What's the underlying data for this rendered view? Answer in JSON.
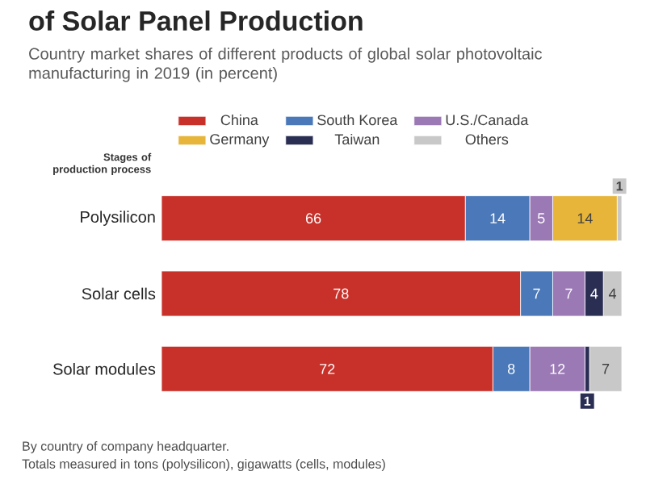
{
  "chart_data": {
    "type": "bar",
    "orientation": "horizontal",
    "stacked": true,
    "title": "of Solar Panel Production",
    "subtitle": "Country market shares of different products of global solar photovoltaic manufacturing in 2019 (in percent)",
    "ylabel": "Stages of production process",
    "categories": [
      "Polysilicon",
      "Solar cells",
      "Solar modules"
    ],
    "series": [
      {
        "name": "China",
        "color": "#c8312a",
        "values": [
          66,
          78,
          72
        ],
        "value_labels": [
          "66",
          "78",
          "72"
        ]
      },
      {
        "name": "South Korea",
        "color": "#4a78b8",
        "values": [
          14,
          7,
          8
        ],
        "value_labels": [
          "14",
          "7",
          "8"
        ]
      },
      {
        "name": "U.S./Canada",
        "color": "#9b79b5",
        "values": [
          5,
          7,
          12
        ],
        "value_labels": [
          "5",
          "7",
          "12"
        ]
      },
      {
        "name": "Germany",
        "color": "#e6b53a",
        "values": [
          14,
          0,
          0
        ],
        "value_labels": [
          "14",
          null,
          null
        ]
      },
      {
        "name": "Taiwan",
        "color": "#2a2e52",
        "values": [
          0,
          4,
          1
        ],
        "value_labels": [
          null,
          "4",
          "1"
        ]
      },
      {
        "name": "Others",
        "color": "#c8c8c8",
        "values": [
          1,
          4,
          7
        ],
        "value_labels": [
          "1",
          "4",
          "7"
        ]
      }
    ],
    "legend": "top",
    "annotations": [
      "By country of company headquarter.",
      "Totals measured in tons (polysilicon), gigawatts (cells, modules)"
    ]
  }
}
